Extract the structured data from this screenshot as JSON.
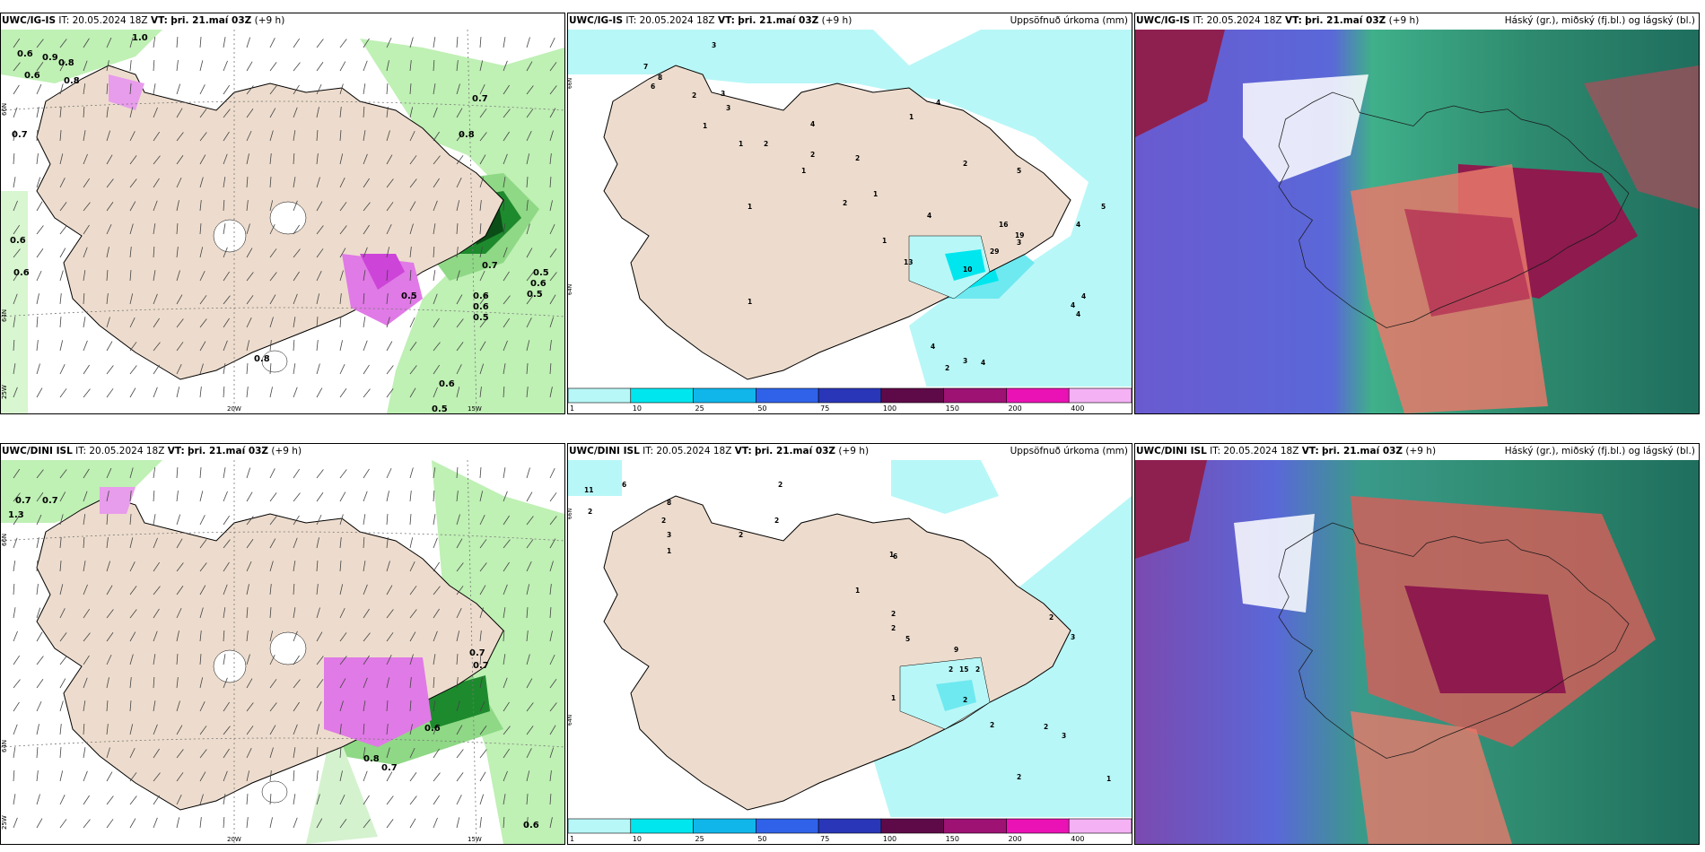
{
  "panels": [
    {
      "model": "UWC/IG-IS",
      "it_label": "IT:",
      "it": "20.05.2024 18Z",
      "vt_label": "VT:",
      "vt": "þri. 21.maí 03Z",
      "lead": "(+9 h)",
      "right": ""
    },
    {
      "model": "UWC/IG-IS",
      "it_label": "IT:",
      "it": "20.05.2024 18Z",
      "vt_label": "VT:",
      "vt": "þri. 21.maí 03Z",
      "lead": "(+9 h)",
      "right": "Uppsöfnuð úrkoma (mm)"
    },
    {
      "model": "UWC/IG-IS",
      "it_label": "IT:",
      "it": "20.05.2024 18Z",
      "vt_label": "VT:",
      "vt": "þri. 21.maí 03Z",
      "lead": "(+9 h)",
      "right": "Háský (gr.), miðský (fj.bl.) og lágský (bl.)"
    },
    {
      "model": "UWC/DINI ISL",
      "it_label": "IT:",
      "it": "20.05.2024 18Z",
      "vt_label": "VT:",
      "vt": "þri. 21.maí 03Z",
      "lead": "(+9 h)",
      "right": ""
    },
    {
      "model": "UWC/DINI ISL",
      "it_label": "IT:",
      "it": "20.05.2024 18Z",
      "vt_label": "VT:",
      "vt": "þri. 21.maí 03Z",
      "lead": "(+9 h)",
      "right": "Uppsöfnuð úrkoma (mm)"
    },
    {
      "model": "UWC/DINI ISL",
      "it_label": "IT:",
      "it": "20.05.2024 18Z",
      "vt_label": "VT:",
      "vt": "þri. 21.maí 03Z",
      "lead": "(+9 h)",
      "right": "Háský (gr.), miðský (fj.bl.) og lágský (bl.)"
    }
  ],
  "axis_labels": {
    "lat66": "66N",
    "lat64": "64N",
    "lat_left": "25W",
    "lon20": "20W",
    "lon15": "15W"
  },
  "precip_legend": {
    "levels": [
      "1",
      "10",
      "25",
      "50",
      "75",
      "100",
      "150",
      "200",
      "400"
    ],
    "colors": [
      "#b8f7f7",
      "#00e6ee",
      "#10b6ea",
      "#2f62e8",
      "#2a36b8",
      "#5e0a48",
      "#9e1274",
      "#ea12b4",
      "#f4b2f4"
    ]
  },
  "wind_labels_top": [
    "1.0",
    "0.6",
    "0.9",
    "0.8",
    "0.6",
    "0.8",
    "0.7",
    "0.7",
    "0.8",
    "0.6",
    "0.6",
    "0.7",
    "0.5",
    "0.6",
    "0.5",
    "0.6",
    "0.6",
    "0.5",
    "0.8",
    "0.5",
    "0.6",
    "0.5"
  ],
  "wind_labels_bottom": [
    "0.7",
    "0.7",
    "1.3",
    "0.7",
    "0.6",
    "0.7",
    "0.8",
    "0.7",
    "0.6"
  ],
  "precip_values_top": [
    "3",
    "7",
    "6",
    "8",
    "2",
    "3",
    "3",
    "1",
    "2",
    "1",
    "4",
    "2",
    "1",
    "2",
    "1",
    "1",
    "4",
    "1",
    "2",
    "4",
    "16",
    "19",
    "29",
    "13",
    "10",
    "3",
    "4",
    "5",
    "4",
    "4",
    "4",
    "2",
    "3",
    "4",
    "4",
    "1",
    "1",
    "2",
    "5"
  ],
  "precip_values_bottom": [
    "11",
    "6",
    "2",
    "8",
    "2",
    "3",
    "1",
    "2",
    "2",
    "2",
    "1",
    "1",
    "6",
    "2",
    "2",
    "5",
    "9",
    "2",
    "15",
    "2",
    "2",
    "3",
    "2",
    "2",
    "2",
    "3",
    "2",
    "1",
    "1"
  ]
}
